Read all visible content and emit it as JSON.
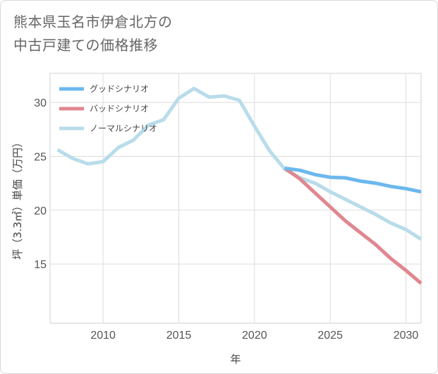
{
  "title_lines": [
    "熊本県玉名市伊倉北方の",
    "中古戸建ての価格推移"
  ],
  "chart_data": {
    "type": "line",
    "xlabel": "年",
    "ylabel": "坪（3.3㎡）単価（万円）",
    "xlim": [
      2006.5,
      2031
    ],
    "ylim": [
      9.5,
      32.7
    ],
    "xticks": [
      2010,
      2015,
      2020,
      2025,
      2030
    ],
    "yticks": [
      15,
      20,
      25,
      30
    ],
    "grid": true,
    "legend_position": "top-left",
    "series": [
      {
        "name": "グッドシナリオ",
        "color": "#6cb8ee",
        "x": [
          2022,
          2023,
          2024,
          2025,
          2026,
          2027,
          2028,
          2029,
          2030,
          2031
        ],
        "y": [
          23.9,
          23.7,
          23.3,
          23.05,
          23.0,
          22.7,
          22.5,
          22.2,
          22.0,
          21.7
        ]
      },
      {
        "name": "バッドシナリオ",
        "color": "#e08790",
        "x": [
          2022,
          2023,
          2024,
          2025,
          2026,
          2027,
          2028,
          2029,
          2030,
          2031
        ],
        "y": [
          23.9,
          22.9,
          21.6,
          20.3,
          19.0,
          17.9,
          16.8,
          15.5,
          14.4,
          13.2
        ]
      },
      {
        "name": "ノーマルシナリオ",
        "color": "#b9dcea",
        "x": [
          2007,
          2008,
          2009,
          2010,
          2011,
          2012,
          2013,
          2014,
          2015,
          2016,
          2017,
          2018,
          2019,
          2020,
          2021,
          2022,
          2023,
          2024,
          2025,
          2026,
          2027,
          2028,
          2029,
          2030,
          2031
        ],
        "y": [
          25.6,
          24.8,
          24.3,
          24.5,
          25.8,
          26.5,
          27.9,
          28.4,
          30.4,
          31.3,
          30.5,
          30.6,
          30.2,
          27.8,
          25.5,
          23.8,
          23.0,
          22.5,
          21.7,
          21.0,
          20.3,
          19.6,
          18.8,
          18.2,
          17.3
        ]
      }
    ]
  }
}
